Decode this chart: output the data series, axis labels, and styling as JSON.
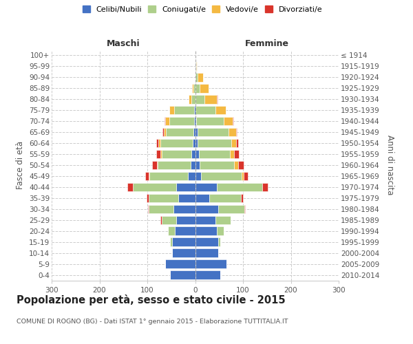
{
  "age_groups": [
    "0-4",
    "5-9",
    "10-14",
    "15-19",
    "20-24",
    "25-29",
    "30-34",
    "35-39",
    "40-44",
    "45-49",
    "50-54",
    "55-59",
    "60-64",
    "65-69",
    "70-74",
    "75-79",
    "80-84",
    "85-89",
    "90-94",
    "95-99",
    "100+"
  ],
  "birth_years": [
    "2010-2014",
    "2005-2009",
    "2000-2004",
    "1995-1999",
    "1990-1994",
    "1985-1989",
    "1980-1984",
    "1975-1979",
    "1970-1974",
    "1965-1969",
    "1960-1964",
    "1955-1959",
    "1950-1954",
    "1945-1949",
    "1940-1944",
    "1935-1939",
    "1930-1934",
    "1925-1929",
    "1920-1924",
    "1915-1919",
    "≤ 1914"
  ],
  "male_celibi": [
    52,
    62,
    48,
    48,
    42,
    40,
    45,
    35,
    40,
    15,
    10,
    8,
    5,
    3,
    2,
    2,
    0,
    0,
    0,
    0,
    0
  ],
  "male_coniugati": [
    0,
    0,
    0,
    5,
    15,
    30,
    52,
    62,
    90,
    80,
    68,
    62,
    68,
    58,
    52,
    42,
    8,
    4,
    0,
    0,
    0
  ],
  "male_vedovi": [
    0,
    0,
    0,
    0,
    0,
    0,
    0,
    0,
    0,
    2,
    2,
    3,
    4,
    5,
    8,
    10,
    5,
    2,
    0,
    0,
    0
  ],
  "male_divorziati": [
    0,
    0,
    0,
    0,
    0,
    2,
    2,
    5,
    12,
    8,
    10,
    8,
    5,
    2,
    2,
    0,
    0,
    0,
    0,
    0,
    0
  ],
  "female_nubili": [
    52,
    65,
    48,
    48,
    45,
    42,
    48,
    30,
    45,
    12,
    10,
    8,
    5,
    5,
    2,
    0,
    0,
    0,
    0,
    0,
    0
  ],
  "female_coniugate": [
    0,
    0,
    0,
    5,
    15,
    32,
    55,
    65,
    95,
    85,
    72,
    65,
    70,
    65,
    58,
    42,
    20,
    10,
    5,
    2,
    0
  ],
  "female_vedove": [
    0,
    0,
    0,
    0,
    0,
    0,
    0,
    0,
    0,
    5,
    8,
    8,
    10,
    15,
    18,
    22,
    25,
    18,
    12,
    2,
    0
  ],
  "female_divorziate": [
    0,
    0,
    0,
    0,
    0,
    0,
    2,
    5,
    12,
    8,
    12,
    10,
    5,
    2,
    2,
    0,
    2,
    0,
    0,
    0,
    0
  ],
  "colors_celibi": "#4472C4",
  "colors_coniugati": "#AECF8B",
  "colors_vedovi": "#F4B942",
  "colors_divorziati": "#D9342B",
  "xlim": 300,
  "title": "Popolazione per età, sesso e stato civile - 2015",
  "subtitle": "COMUNE DI ROGNO (BG) - Dati ISTAT 1° gennaio 2015 - Elaborazione TUTTITALIA.IT",
  "ylabel_left": "Fasce di età",
  "ylabel_right": "Anni di nascita",
  "xlabel_left": "Maschi",
  "xlabel_right": "Femmine",
  "legend_labels": [
    "Celibi/Nubili",
    "Coniugati/e",
    "Vedovi/e",
    "Divorziati/e"
  ],
  "bg_color": "#ffffff",
  "grid_color": "#cccccc",
  "xticks": [
    -300,
    -200,
    -100,
    0,
    100,
    200,
    300
  ]
}
